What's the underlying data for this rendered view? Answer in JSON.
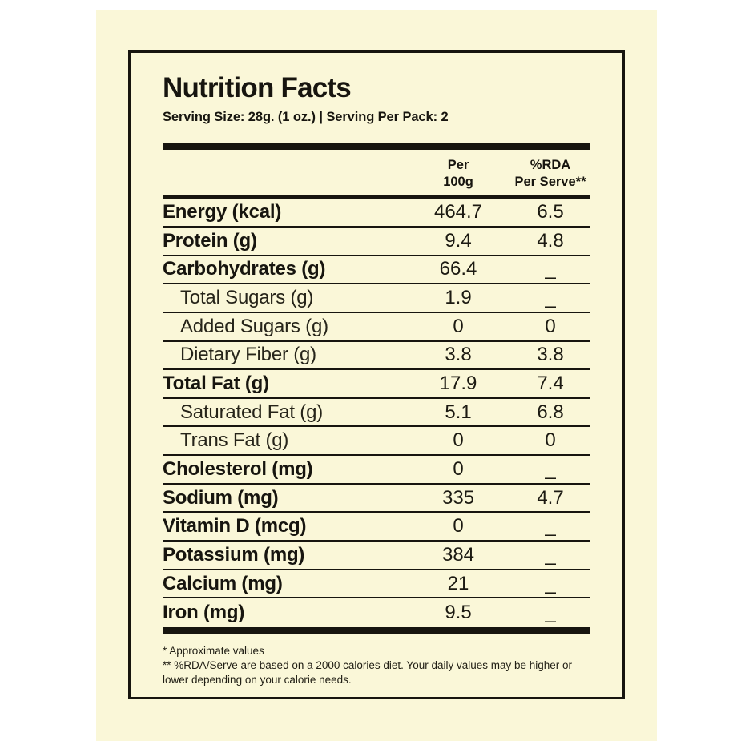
{
  "colors": {
    "page_background": "#ffffff",
    "label_background": "#faf7d8",
    "ink": "#17150f"
  },
  "label": {
    "title": "Nutrition Facts",
    "serving_line": "Serving Size: 28g. (1 oz.) | Serving Per Pack: 2",
    "columns": {
      "col1_line1": "Per",
      "col1_line2": "100g",
      "col2_line1": "%RDA",
      "col2_line2": "Per Serve**"
    },
    "rows": [
      {
        "name": "Energy (kcal)",
        "per_100g": "464.7",
        "rda_per_serve": "6.5",
        "emphasis": true,
        "indent": false
      },
      {
        "name": "Protein (g)",
        "per_100g": "9.4",
        "rda_per_serve": "4.8",
        "emphasis": true,
        "indent": false
      },
      {
        "name": "Carbohydrates (g)",
        "per_100g": "66.4",
        "rda_per_serve": "_",
        "emphasis": true,
        "indent": false
      },
      {
        "name": "Total Sugars (g)",
        "per_100g": "1.9",
        "rda_per_serve": "_",
        "emphasis": false,
        "indent": true
      },
      {
        "name": "Added Sugars (g)",
        "per_100g": "0",
        "rda_per_serve": "0",
        "emphasis": false,
        "indent": true
      },
      {
        "name": "Dietary Fiber (g)",
        "per_100g": "3.8",
        "rda_per_serve": "3.8",
        "emphasis": false,
        "indent": true
      },
      {
        "name": "Total Fat (g)",
        "per_100g": "17.9",
        "rda_per_serve": "7.4",
        "emphasis": true,
        "indent": false
      },
      {
        "name": "Saturated Fat (g)",
        "per_100g": "5.1",
        "rda_per_serve": "6.8",
        "emphasis": false,
        "indent": true
      },
      {
        "name": "Trans Fat (g)",
        "per_100g": "0",
        "rda_per_serve": "0",
        "emphasis": false,
        "indent": true
      },
      {
        "name": "Cholesterol (mg)",
        "per_100g": "0",
        "rda_per_serve": "_",
        "emphasis": true,
        "indent": false
      },
      {
        "name": "Sodium (mg)",
        "per_100g": "335",
        "rda_per_serve": "4.7",
        "emphasis": true,
        "indent": false
      },
      {
        "name": "Vitamin D (mcg)",
        "per_100g": "0",
        "rda_per_serve": "_",
        "emphasis": true,
        "indent": false
      },
      {
        "name": "Potassium (mg)",
        "per_100g": "384",
        "rda_per_serve": "_",
        "emphasis": true,
        "indent": false
      },
      {
        "name": "Calcium (mg)",
        "per_100g": "21",
        "rda_per_serve": "_",
        "emphasis": true,
        "indent": false
      },
      {
        "name": "Iron (mg)",
        "per_100g": "9.5",
        "rda_per_serve": "_",
        "emphasis": true,
        "indent": false
      }
    ],
    "footnotes": [
      "* Approximate values",
      "** %RDA/Serve are based on a 2000 calories diet. Your daily values may be higher or lower depending on your calorie needs."
    ]
  }
}
